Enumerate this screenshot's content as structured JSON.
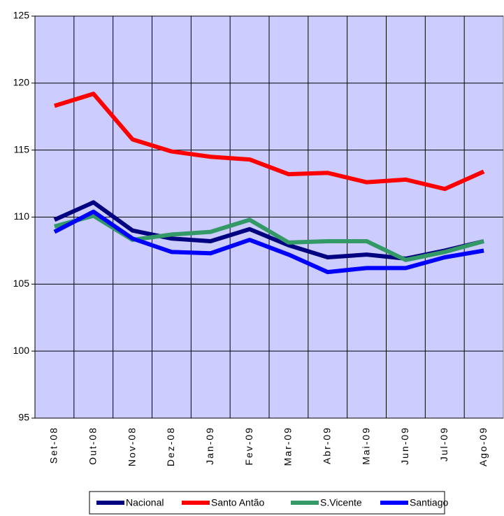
{
  "chart_data": {
    "type": "line",
    "categories": [
      "Set-08",
      "Out-08",
      "Nov-08",
      "Dez-08",
      "Jan-09",
      "Fev-09",
      "Mar-09",
      "Abr-09",
      "Mai-09",
      "Jun-09",
      "Jul-09",
      "Ago-09"
    ],
    "series": [
      {
        "name": "Nacional",
        "color": "#000080",
        "values": [
          109.8,
          111.1,
          109.0,
          108.4,
          108.2,
          109.1,
          107.9,
          107.0,
          107.2,
          106.9,
          107.5,
          108.2
        ]
      },
      {
        "name": "Santo Antão",
        "color": "#ff0000",
        "values": [
          118.3,
          119.2,
          115.8,
          114.9,
          114.5,
          114.3,
          113.2,
          113.3,
          112.6,
          112.8,
          112.1,
          113.4
        ]
      },
      {
        "name": "S.Vicente",
        "color": "#339966",
        "values": [
          109.3,
          110.1,
          108.3,
          108.7,
          108.9,
          109.8,
          108.1,
          108.2,
          108.2,
          106.8,
          107.4,
          108.2
        ]
      },
      {
        "name": "Santiago",
        "color": "#0000ff",
        "values": [
          108.9,
          110.4,
          108.4,
          107.4,
          107.3,
          108.3,
          107.2,
          105.9,
          106.2,
          106.2,
          107.0,
          107.5
        ]
      }
    ],
    "ylim": [
      95,
      125
    ],
    "yticks": [
      95,
      100,
      105,
      110,
      115,
      120,
      125
    ],
    "grid": true,
    "legend": "bottom"
  }
}
